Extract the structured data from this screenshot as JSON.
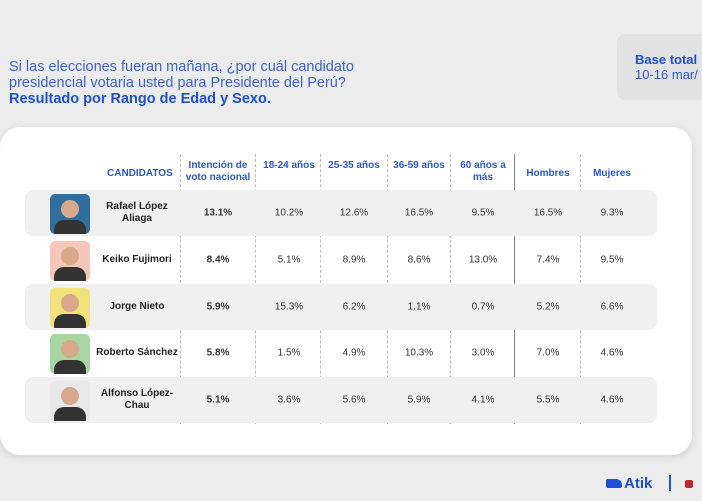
{
  "title": {
    "line1": "Si las elecciones fueran mañana, ¿por cuál candidato",
    "line2": "presidencial votaria usted para Presidente del Perú?",
    "subtitle": "Resultado por Rango de Edad y Sexo."
  },
  "base": {
    "label": "Base total",
    "date": "10-16 mar/"
  },
  "headers": [
    "CANDIDATOS",
    "Intención de voto nacional",
    "18-24 años",
    "25-35 años",
    "36-59 años",
    "60 años a más",
    "Hombres",
    "Mujeres"
  ],
  "rows": [
    {
      "name": "Rafael López Aliaga",
      "values": [
        "13.1%",
        "10.2%",
        "12.6%",
        "16.5%",
        "9.5%",
        "16.5%",
        "9.3%"
      ],
      "photo_color": "#2f6fa0"
    },
    {
      "name": "Keiko Fujimori",
      "values": [
        "8.4%",
        "5.1%",
        "8.9%",
        "8.6%",
        "13.0%",
        "7.4%",
        "9.5%"
      ],
      "photo_color": "#f4c7b8"
    },
    {
      "name": "Jorge Nieto",
      "values": [
        "5.9%",
        "15.3%",
        "6.2%",
        "1.1%",
        "0.7%",
        "5.2%",
        "6.6%"
      ],
      "photo_color": "#f2e27a"
    },
    {
      "name": "Roberto Sánchez",
      "values": [
        "5.8%",
        "1.5%",
        "4.9%",
        "10.3%",
        "3.0%",
        "7.0%",
        "4.6%"
      ],
      "photo_color": "#a8d6a0"
    },
    {
      "name": "Alfonso López-Chau",
      "values": [
        "5.1%",
        "3.6%",
        "5.6%",
        "5.9%",
        "4.1%",
        "5.5%",
        "4.6%"
      ],
      "photo_color": "#e8e8e8"
    }
  ],
  "footer": {
    "brand": "Atik"
  }
}
